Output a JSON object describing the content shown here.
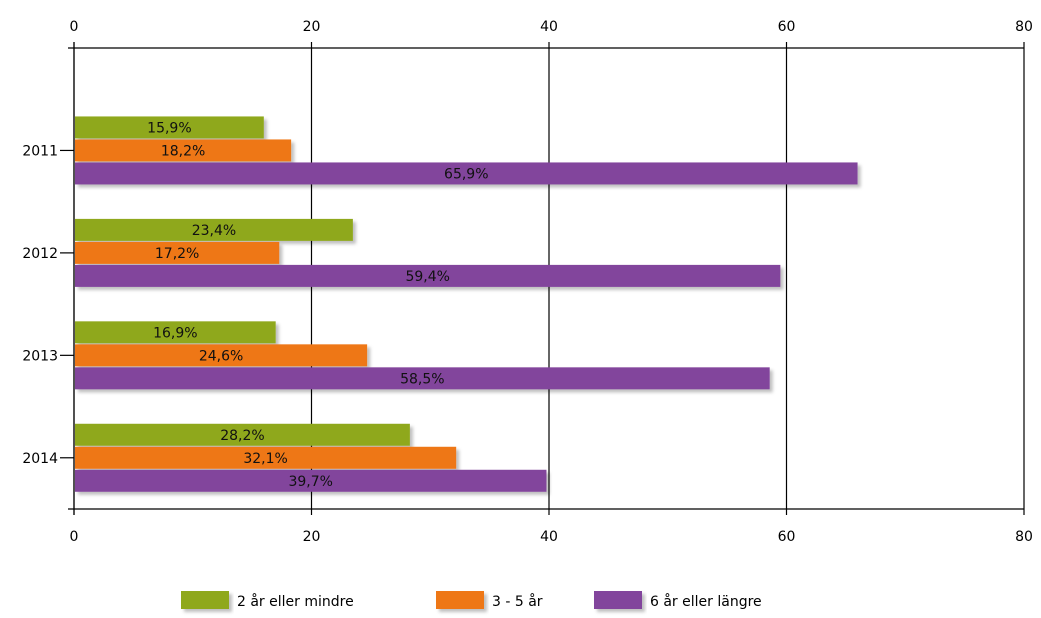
{
  "chart_data": {
    "type": "bar",
    "orientation": "horizontal",
    "categories": [
      "2011",
      "2012",
      "2013",
      "2014"
    ],
    "series": [
      {
        "name": "2 år eller mindre",
        "color": "#8fa81e",
        "values": [
          15.9,
          23.4,
          16.9,
          28.2
        ],
        "labels": [
          "15,9%",
          "23,4%",
          "16,9%",
          "28,2%"
        ]
      },
      {
        "name": "3 - 5 år",
        "color": "#ee7716",
        "values": [
          18.2,
          17.2,
          24.6,
          32.1
        ],
        "labels": [
          "18,2%",
          "17,2%",
          "24,6%",
          "32,1%"
        ]
      },
      {
        "name": "6 år eller längre",
        "color": "#82449c",
        "values": [
          65.9,
          59.4,
          58.5,
          39.7
        ],
        "labels": [
          "65,9%",
          "59,4%",
          "58,5%",
          "39,7%"
        ]
      }
    ],
    "xlim": [
      0,
      80
    ],
    "xticks": [
      "0",
      "20",
      "40",
      "60",
      "80"
    ],
    "xaxis_position": "top-and-bottom",
    "grid": true,
    "legend": "bottom"
  }
}
